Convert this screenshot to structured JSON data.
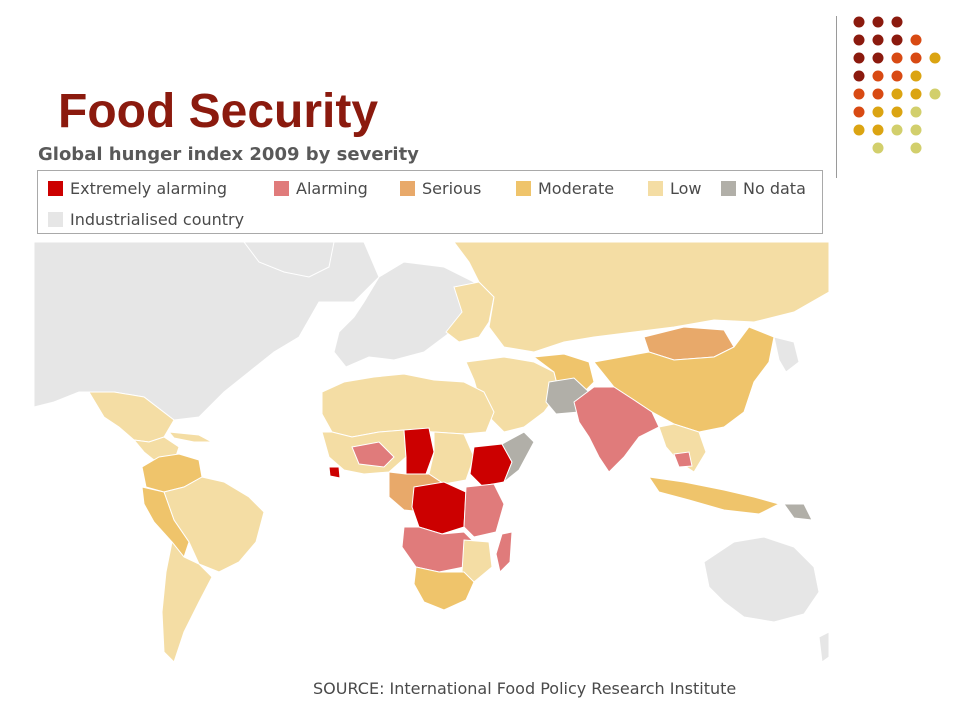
{
  "slide": {
    "title": "Food Security"
  },
  "map": {
    "title": "Global hunger index 2009 by severity",
    "legend": [
      {
        "label": "Extremely alarming",
        "color": "#cc0000"
      },
      {
        "label": "Alarming",
        "color": "#e07b7b"
      },
      {
        "label": "Serious",
        "color": "#e8a96a"
      },
      {
        "label": "Moderate",
        "color": "#efc46b"
      },
      {
        "label": "Low",
        "color": "#f4dda4"
      },
      {
        "label": "No data",
        "color": "#b1afa8"
      },
      {
        "label": "Industrialised country",
        "color": "#e6e6e6"
      }
    ],
    "source": "SOURCE: International Food Policy Research Institute"
  },
  "theme": {
    "title_color": "#8b1a0e",
    "dot_colors": [
      "#8b1a0e",
      "#d84a13",
      "#dba412",
      "#d2cf6c"
    ]
  }
}
